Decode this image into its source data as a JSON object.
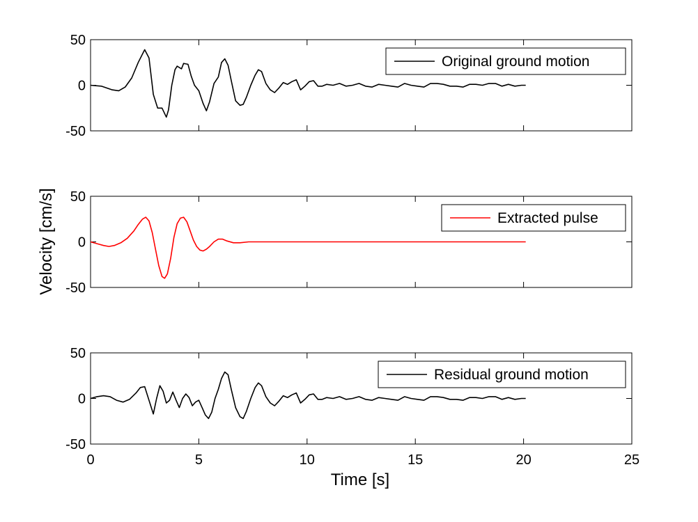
{
  "chart_data": [
    {
      "type": "line",
      "ylabel": "Velocity [cm/s]",
      "xlim": [
        0,
        25
      ],
      "ylim": [
        -50,
        50
      ],
      "yticks": [
        50,
        0,
        -50
      ],
      "grid": false,
      "legend_position": "top-right",
      "series": [
        {
          "name": "Original ground motion",
          "color": "#000000",
          "x": [
            0,
            0.5,
            1,
            1.3,
            1.6,
            1.9,
            2.2,
            2.5,
            2.7,
            2.9,
            3.1,
            3.3,
            3.5,
            3.6,
            3.75,
            3.9,
            4.0,
            4.2,
            4.3,
            4.5,
            4.65,
            4.8,
            5.0,
            5.2,
            5.35,
            5.5,
            5.7,
            5.9,
            6.05,
            6.2,
            6.35,
            6.5,
            6.7,
            6.9,
            7.05,
            7.2,
            7.4,
            7.6,
            7.75,
            7.9,
            8.1,
            8.3,
            8.5,
            8.7,
            8.9,
            9.1,
            9.3,
            9.5,
            9.7,
            9.9,
            10.1,
            10.3,
            10.5,
            10.7,
            10.9,
            11.2,
            11.5,
            11.8,
            12.1,
            12.4,
            12.7,
            13.0,
            13.3,
            13.6,
            13.9,
            14.2,
            14.5,
            14.8,
            15.1,
            15.4,
            15.7,
            16.0,
            16.3,
            16.6,
            16.9,
            17.2,
            17.5,
            17.8,
            18.1,
            18.4,
            18.7,
            19.0,
            19.3,
            19.6,
            19.9,
            20.1
          ],
          "y": [
            0,
            -1,
            -5,
            -6,
            -2,
            8,
            25,
            39,
            30,
            -10,
            -25,
            -25,
            -35,
            -27,
            0,
            17,
            21,
            18,
            24,
            23,
            10,
            0,
            -6,
            -20,
            -28,
            -18,
            2,
            9,
            25,
            29,
            22,
            5,
            -17,
            -22,
            -21,
            -13,
            0,
            11,
            17,
            15,
            2,
            -5,
            -8,
            -3,
            3,
            1,
            4,
            6,
            -5,
            -1,
            4,
            5,
            -1,
            -1,
            1,
            0,
            2,
            -1,
            0,
            2,
            -1,
            -2,
            1,
            0,
            -1,
            -2,
            2,
            0,
            -1,
            -2,
            2,
            2,
            1,
            -1,
            -1,
            -2,
            1,
            1,
            0,
            2,
            2,
            -1,
            1,
            -1,
            0,
            0
          ]
        }
      ]
    },
    {
      "type": "line",
      "xlim": [
        0,
        25
      ],
      "ylim": [
        -50,
        50
      ],
      "yticks": [
        50,
        0,
        -50
      ],
      "grid": false,
      "legend_position": "top-right",
      "series": [
        {
          "name": "Extracted pulse",
          "color": "#ff0000",
          "x": [
            0,
            0.3,
            0.6,
            0.85,
            1.1,
            1.4,
            1.7,
            2.0,
            2.2,
            2.4,
            2.55,
            2.7,
            2.85,
            3.0,
            3.15,
            3.3,
            3.42,
            3.55,
            3.7,
            3.85,
            4.0,
            4.15,
            4.3,
            4.45,
            4.6,
            4.75,
            4.9,
            5.05,
            5.2,
            5.35,
            5.5,
            5.7,
            5.9,
            6.1,
            6.3,
            6.6,
            6.9,
            7.3,
            8,
            9,
            10,
            12,
            14,
            16,
            18,
            20.1
          ],
          "y": [
            0,
            -2,
            -4,
            -5,
            -4,
            -1,
            4,
            12,
            19,
            25,
            27,
            23,
            10,
            -8,
            -26,
            -38,
            -40,
            -35,
            -18,
            5,
            20,
            26,
            27,
            22,
            12,
            2,
            -5,
            -9,
            -10,
            -8,
            -5,
            0,
            3,
            3,
            1,
            -1,
            -1,
            0,
            0,
            0,
            0,
            0,
            0,
            0,
            0,
            0
          ]
        }
      ]
    },
    {
      "type": "line",
      "xlabel": "Time [s]",
      "xlim": [
        0,
        25
      ],
      "xticks": [
        0,
        5,
        10,
        15,
        20,
        25
      ],
      "ylim": [
        -50,
        50
      ],
      "yticks": [
        50,
        0,
        -50
      ],
      "grid": false,
      "legend_position": "top-right",
      "series": [
        {
          "name": "Residual ground motion",
          "color": "#000000",
          "x": [
            0,
            0.3,
            0.6,
            0.9,
            1.2,
            1.5,
            1.8,
            2.1,
            2.3,
            2.5,
            2.7,
            2.9,
            3.05,
            3.2,
            3.35,
            3.5,
            3.65,
            3.8,
            3.95,
            4.1,
            4.25,
            4.4,
            4.55,
            4.7,
            4.85,
            5.0,
            5.15,
            5.3,
            5.45,
            5.6,
            5.75,
            5.9,
            6.05,
            6.2,
            6.35,
            6.5,
            6.7,
            6.9,
            7.05,
            7.2,
            7.4,
            7.6,
            7.75,
            7.9,
            8.1,
            8.3,
            8.5,
            8.7,
            8.9,
            9.1,
            9.3,
            9.5,
            9.7,
            9.9,
            10.1,
            10.3,
            10.5,
            10.7,
            10.9,
            11.2,
            11.5,
            11.8,
            12.1,
            12.4,
            12.7,
            13.0,
            13.3,
            13.6,
            13.9,
            14.2,
            14.5,
            14.8,
            15.1,
            15.4,
            15.7,
            16.0,
            16.3,
            16.6,
            16.9,
            17.2,
            17.5,
            17.8,
            18.1,
            18.4,
            18.7,
            19.0,
            19.3,
            19.6,
            19.9,
            20.1
          ],
          "y": [
            0,
            2,
            3,
            2,
            -2,
            -4,
            -1,
            6,
            12,
            13,
            -2,
            -17,
            0,
            14,
            8,
            -5,
            -2,
            7,
            -2,
            -10,
            0,
            5,
            1,
            -8,
            -4,
            -2,
            -10,
            -18,
            -22,
            -15,
            0,
            10,
            22,
            29,
            26,
            10,
            -10,
            -20,
            -22,
            -14,
            0,
            12,
            17,
            14,
            2,
            -5,
            -8,
            -3,
            3,
            1,
            4,
            6,
            -5,
            -1,
            4,
            5,
            -1,
            -1,
            1,
            0,
            2,
            -1,
            0,
            2,
            -1,
            -2,
            1,
            0,
            -1,
            -2,
            2,
            0,
            -1,
            -2,
            2,
            2,
            1,
            -1,
            -1,
            -2,
            1,
            1,
            0,
            2,
            2,
            -1,
            1,
            -1,
            0,
            0
          ]
        }
      ]
    }
  ]
}
